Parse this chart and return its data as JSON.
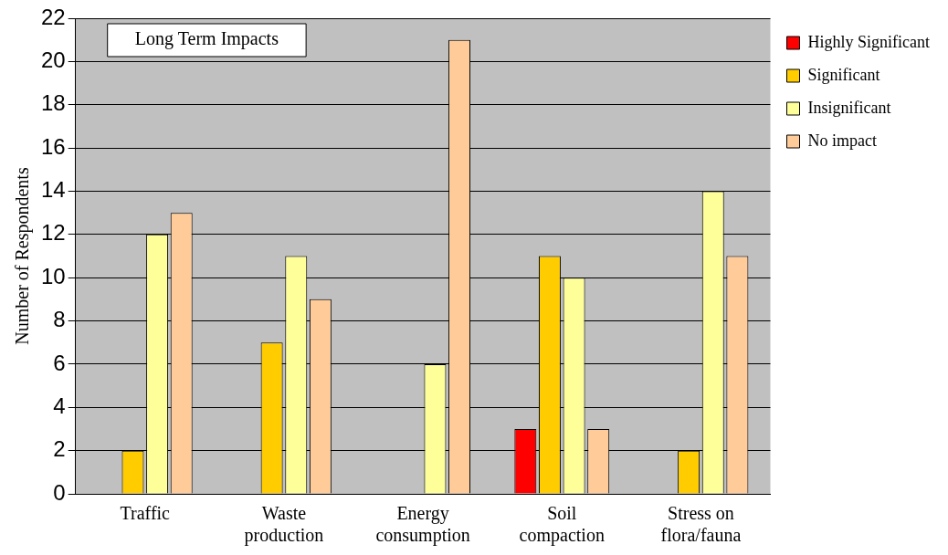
{
  "chart_data": {
    "type": "bar",
    "title": "Long Term Impacts",
    "ylabel": "Number of Respondents",
    "categories": [
      "Traffic",
      "Waste production",
      "Energy consumption",
      "Soil compaction",
      "Stress on flora/fauna"
    ],
    "series": [
      {
        "name": "Highly Significant",
        "color": "#ff0000",
        "values": [
          0,
          0,
          0,
          3,
          0
        ]
      },
      {
        "name": "Significant",
        "color": "#ffcc00",
        "values": [
          2,
          7,
          0,
          11,
          2
        ]
      },
      {
        "name": "Insignificant",
        "color": "#ffff99",
        "values": [
          12,
          11,
          6,
          10,
          14
        ]
      },
      {
        "name": "No impact",
        "color": "#ffcc99",
        "values": [
          13,
          9,
          21,
          3,
          11
        ]
      }
    ],
    "ylim": [
      0,
      22
    ],
    "yticks": [
      0,
      2,
      4,
      6,
      8,
      10,
      12,
      14,
      16,
      18,
      20,
      22
    ],
    "grid": "y",
    "legend": "top right"
  }
}
